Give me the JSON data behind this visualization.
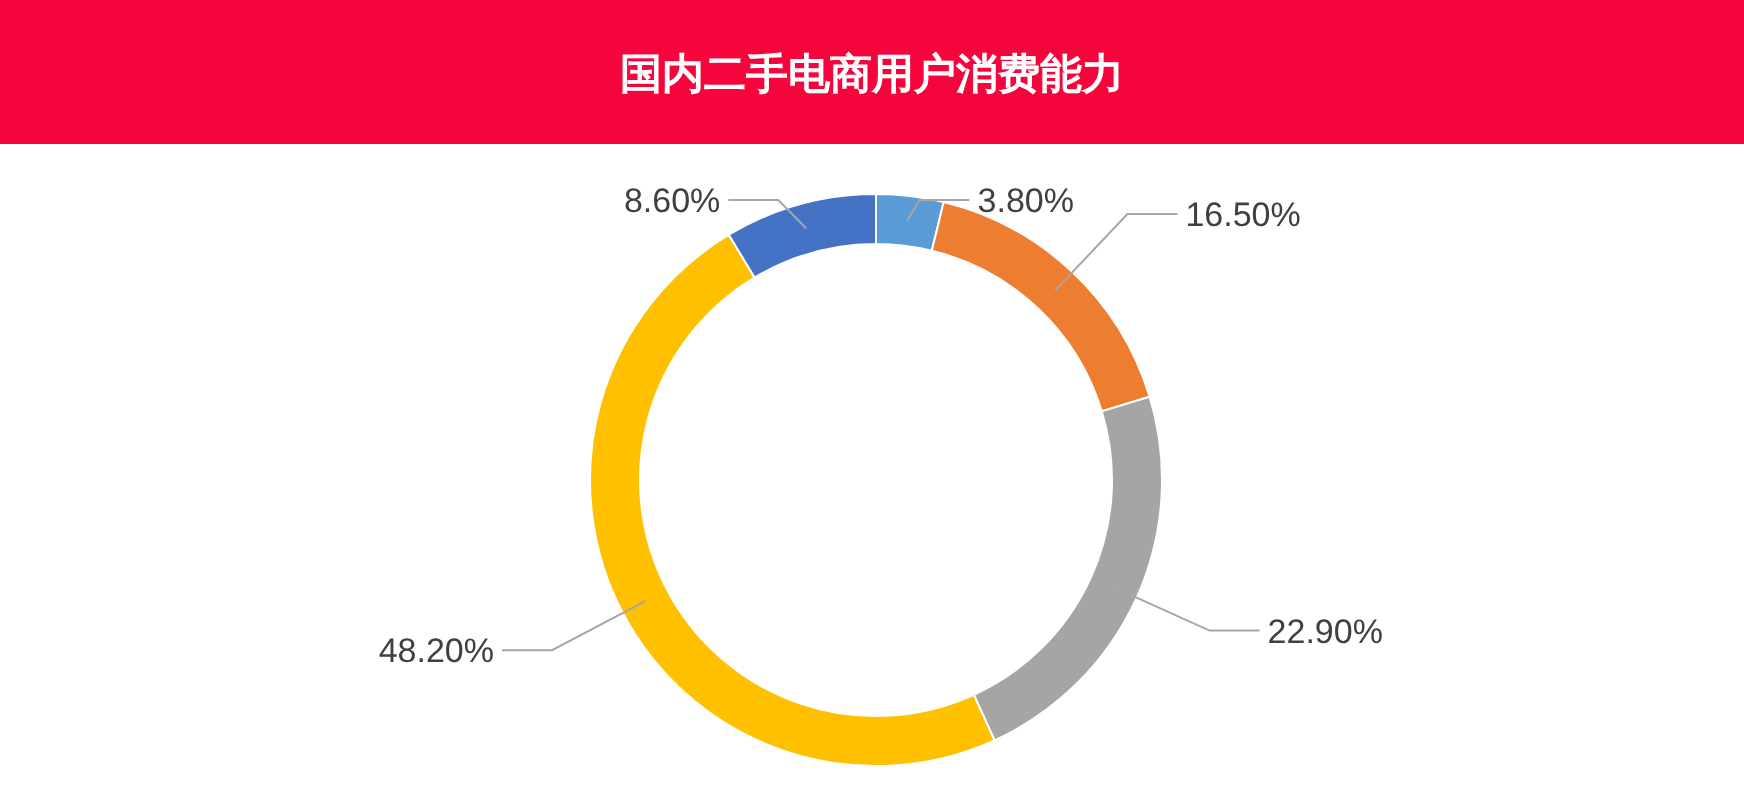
{
  "chart_data": {
    "type": "donut",
    "title": "国内二手电商用户消费能力",
    "categories": [
      null,
      null,
      null,
      null,
      null
    ],
    "values": [
      3.8,
      16.5,
      22.9,
      48.2,
      8.6
    ],
    "colors": [
      "#5b9bd5",
      "#ed7d31",
      "#a5a5a5",
      "#ffc000",
      "#4472c4"
    ],
    "value_labels": [
      "3.80%",
      "16.50%",
      "22.90%",
      "48.20%",
      "8.60%"
    ]
  }
}
